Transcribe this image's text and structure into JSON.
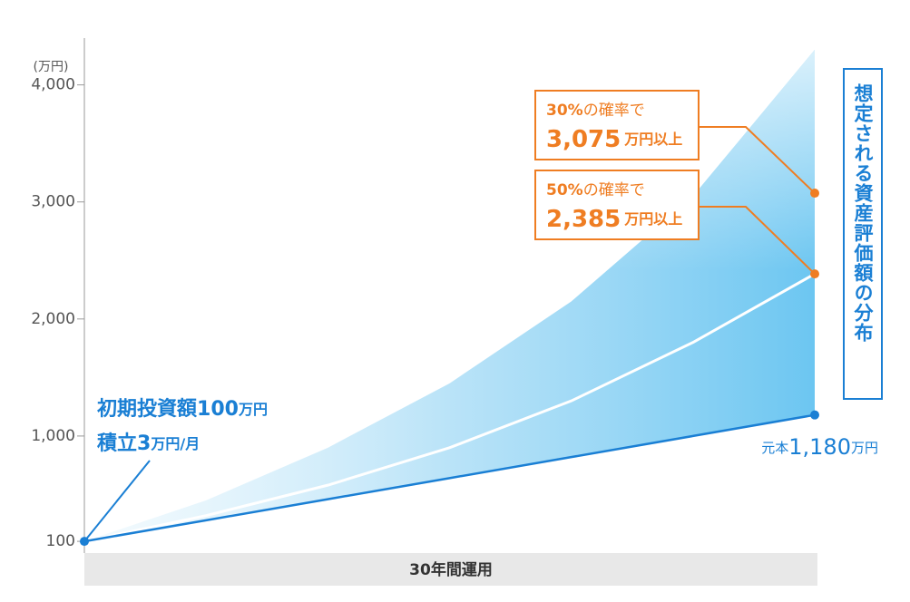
{
  "chart_data": {
    "type": "line",
    "y_unit": "(万円)",
    "xlabel": "30年間運用",
    "x": [
      0,
      5,
      10,
      15,
      20,
      25,
      30
    ],
    "xlim": [
      0,
      30
    ],
    "ylim": [
      0,
      4400
    ],
    "yticks": [
      100,
      {
        "value": 1000,
        "label": "1,000"
      },
      {
        "value": 2000,
        "label": "2,000"
      },
      {
        "value": 3000,
        "label": "3,000"
      },
      {
        "value": 4000,
        "label": "4,000"
      }
    ],
    "series": [
      {
        "name": "想定される資産評価額の分布",
        "color": "#5bc0f0",
        "values": [
          100,
          450,
          900,
          1450,
          2150,
          3050,
          4300
        ]
      },
      {
        "color": "#ffffff",
        "values": [
          100,
          320,
          580,
          900,
          1300,
          1800,
          2385
        ]
      },
      {
        "color": "#1a7fd4",
        "values": [
          100,
          280,
          460,
          640,
          820,
          1000,
          1180
        ]
      }
    ],
    "annotations": [
      {
        "percent": "30%",
        "text": "の確率で",
        "value": 3075,
        "value_label": "3,075",
        "unit": "万円以上",
        "color": "#ef7d22"
      },
      {
        "percent": "50%",
        "text": "の確率で",
        "value": 2385,
        "value_label": "2,385",
        "unit": "万円以上",
        "color": "#ef7d22"
      }
    ],
    "start_note": {
      "line1": [
        "初期投資額",
        "100",
        "万円"
      ],
      "line2": [
        "積立",
        "3",
        "万円",
        "/月"
      ],
      "color": "#1a7fd4"
    },
    "principal_note": {
      "prefix": "元本",
      "value": 1180,
      "value_label": "1,180",
      "unit": "万円"
    }
  }
}
